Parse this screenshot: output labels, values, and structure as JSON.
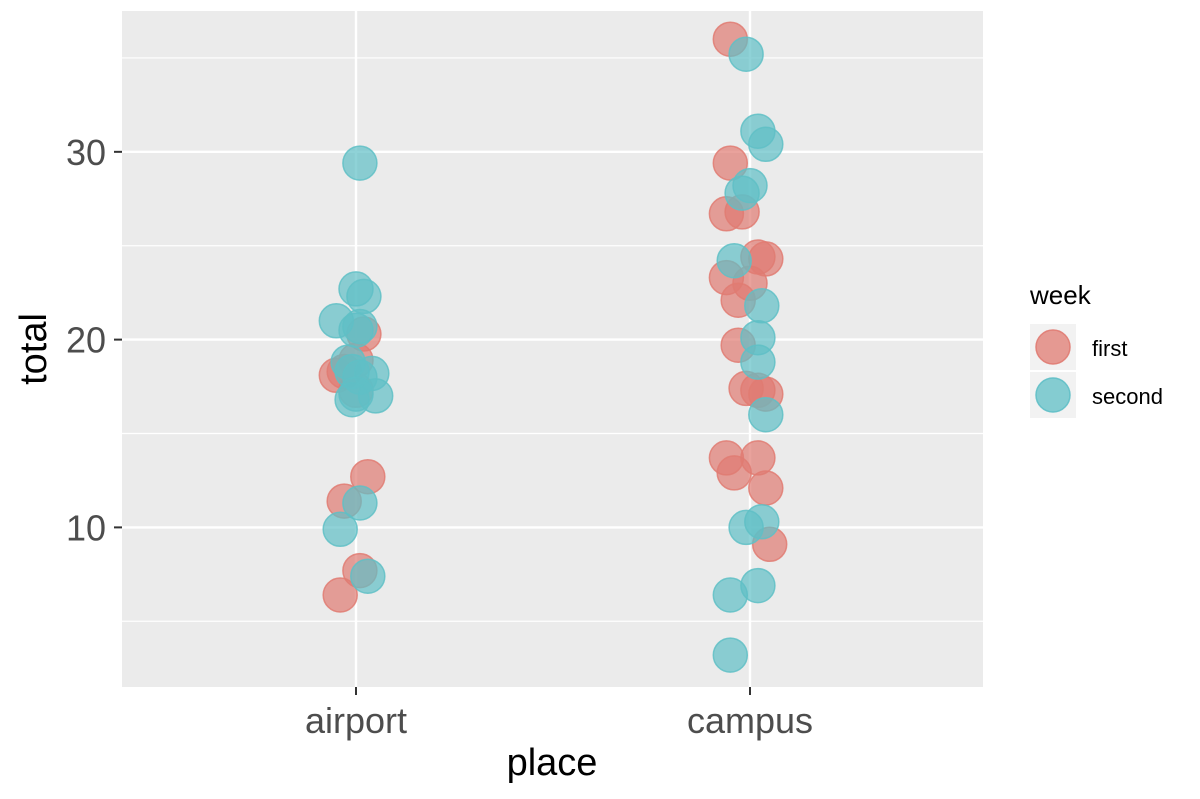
{
  "chart_data": {
    "type": "scatter",
    "xlabel": "place",
    "ylabel": "total",
    "categories": [
      "airport",
      "campus"
    ],
    "ylim": [
      1.5,
      37.5
    ],
    "y_ticks": [
      10,
      20,
      30
    ],
    "grid": true,
    "legend": {
      "title": "week",
      "placement": "right",
      "entries": [
        {
          "label": "first",
          "color": "#e07b72"
        },
        {
          "label": "second",
          "color": "#5fbfc6"
        }
      ]
    },
    "series": [
      {
        "name": "first",
        "color": "#e07b72",
        "points": [
          {
            "x": "airport",
            "jitter": -0.05,
            "y": 18.1
          },
          {
            "x": "airport",
            "jitter": -0.03,
            "y": 18.3
          },
          {
            "x": "airport",
            "jitter": 0.0,
            "y": 18.9
          },
          {
            "x": "airport",
            "jitter": 0.02,
            "y": 20.3
          },
          {
            "x": "airport",
            "jitter": 0.0,
            "y": 17.3
          },
          {
            "x": "airport",
            "jitter": 0.03,
            "y": 12.7
          },
          {
            "x": "airport",
            "jitter": -0.03,
            "y": 11.4
          },
          {
            "x": "airport",
            "jitter": 0.01,
            "y": 7.7
          },
          {
            "x": "airport",
            "jitter": -0.04,
            "y": 6.4
          },
          {
            "x": "campus",
            "jitter": -0.05,
            "y": 36.0
          },
          {
            "x": "campus",
            "jitter": -0.05,
            "y": 29.4
          },
          {
            "x": "campus",
            "jitter": -0.06,
            "y": 26.7
          },
          {
            "x": "campus",
            "jitter": -0.02,
            "y": 26.8
          },
          {
            "x": "campus",
            "jitter": -0.06,
            "y": 23.3
          },
          {
            "x": "campus",
            "jitter": 0.0,
            "y": 23.0
          },
          {
            "x": "campus",
            "jitter": 0.02,
            "y": 24.4
          },
          {
            "x": "campus",
            "jitter": 0.04,
            "y": 24.3
          },
          {
            "x": "campus",
            "jitter": -0.03,
            "y": 22.1
          },
          {
            "x": "campus",
            "jitter": -0.03,
            "y": 19.7
          },
          {
            "x": "campus",
            "jitter": -0.01,
            "y": 17.4
          },
          {
            "x": "campus",
            "jitter": 0.02,
            "y": 17.3
          },
          {
            "x": "campus",
            "jitter": 0.04,
            "y": 17.1
          },
          {
            "x": "campus",
            "jitter": -0.06,
            "y": 13.7
          },
          {
            "x": "campus",
            "jitter": -0.04,
            "y": 12.9
          },
          {
            "x": "campus",
            "jitter": 0.02,
            "y": 13.7
          },
          {
            "x": "campus",
            "jitter": 0.04,
            "y": 12.1
          },
          {
            "x": "campus",
            "jitter": 0.05,
            "y": 9.1
          }
        ]
      },
      {
        "name": "second",
        "color": "#5fbfc6",
        "points": [
          {
            "x": "airport",
            "jitter": 0.01,
            "y": 29.4
          },
          {
            "x": "airport",
            "jitter": 0.0,
            "y": 22.7
          },
          {
            "x": "airport",
            "jitter": 0.02,
            "y": 22.3
          },
          {
            "x": "airport",
            "jitter": -0.05,
            "y": 21.0
          },
          {
            "x": "airport",
            "jitter": 0.0,
            "y": 20.5
          },
          {
            "x": "airport",
            "jitter": 0.01,
            "y": 20.7
          },
          {
            "x": "airport",
            "jitter": -0.02,
            "y": 18.8
          },
          {
            "x": "airport",
            "jitter": -0.01,
            "y": 18.3
          },
          {
            "x": "airport",
            "jitter": 0.01,
            "y": 18.0
          },
          {
            "x": "airport",
            "jitter": 0.04,
            "y": 18.2
          },
          {
            "x": "airport",
            "jitter": 0.0,
            "y": 17.1
          },
          {
            "x": "airport",
            "jitter": -0.01,
            "y": 16.8
          },
          {
            "x": "airport",
            "jitter": 0.05,
            "y": 17.0
          },
          {
            "x": "airport",
            "jitter": 0.01,
            "y": 11.3
          },
          {
            "x": "airport",
            "jitter": -0.04,
            "y": 9.9
          },
          {
            "x": "airport",
            "jitter": 0.03,
            "y": 7.4
          },
          {
            "x": "campus",
            "jitter": -0.01,
            "y": 35.2
          },
          {
            "x": "campus",
            "jitter": 0.02,
            "y": 31.1
          },
          {
            "x": "campus",
            "jitter": 0.04,
            "y": 30.4
          },
          {
            "x": "campus",
            "jitter": 0.0,
            "y": 28.2
          },
          {
            "x": "campus",
            "jitter": -0.02,
            "y": 27.8
          },
          {
            "x": "campus",
            "jitter": -0.04,
            "y": 24.2
          },
          {
            "x": "campus",
            "jitter": 0.03,
            "y": 21.8
          },
          {
            "x": "campus",
            "jitter": 0.02,
            "y": 20.1
          },
          {
            "x": "campus",
            "jitter": 0.02,
            "y": 18.8
          },
          {
            "x": "campus",
            "jitter": 0.04,
            "y": 16.0
          },
          {
            "x": "campus",
            "jitter": -0.01,
            "y": 10.0
          },
          {
            "x": "campus",
            "jitter": 0.03,
            "y": 10.3
          },
          {
            "x": "campus",
            "jitter": -0.05,
            "y": 6.4
          },
          {
            "x": "campus",
            "jitter": 0.02,
            "y": 6.9
          },
          {
            "x": "campus",
            "jitter": -0.05,
            "y": 3.2
          }
        ]
      }
    ]
  }
}
